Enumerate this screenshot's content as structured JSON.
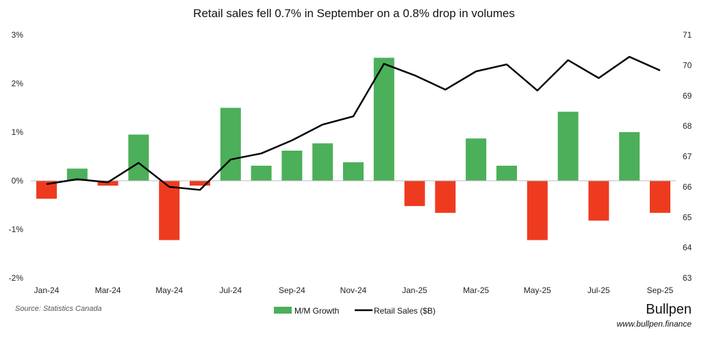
{
  "chart_data": {
    "type": "bar+line",
    "title": "Retail sales fell 0.7% in September on a 0.8% drop in volumes",
    "categories": [
      "Jan-24",
      "Feb-24",
      "Mar-24",
      "Apr-24",
      "May-24",
      "Jun-24",
      "Jul-24",
      "Aug-24",
      "Sep-24",
      "Oct-24",
      "Nov-24",
      "Dec-24",
      "Jan-25",
      "Feb-25",
      "Mar-25",
      "Apr-25",
      "May-25",
      "Jun-25",
      "Jul-25",
      "Aug-25",
      "Sep-25"
    ],
    "x_tick_labels": [
      "Jan-24",
      "Mar-24",
      "May-24",
      "Jul-24",
      "Sep-24",
      "Nov-24",
      "Jan-25",
      "Mar-25",
      "May-25",
      "Jul-25",
      "Sep-25"
    ],
    "series": [
      {
        "name": "M/M Growth",
        "type": "bar",
        "axis": "left",
        "unit": "%",
        "values": [
          -0.37,
          0.25,
          -0.1,
          0.95,
          -1.22,
          -0.1,
          1.5,
          0.31,
          0.62,
          0.77,
          0.38,
          2.53,
          -0.52,
          -0.66,
          0.87,
          0.31,
          -1.22,
          1.42,
          -0.82,
          1.0,
          -0.66
        ],
        "color_positive": "#4caf5a",
        "color_negative": "#ee3b1f"
      },
      {
        "name": "Retail Sales ($B)",
        "type": "line",
        "axis": "right",
        "values": [
          66.09,
          66.25,
          66.15,
          66.79,
          66.0,
          65.9,
          66.9,
          67.1,
          67.53,
          68.05,
          68.32,
          70.05,
          69.67,
          69.2,
          69.8,
          70.03,
          69.17,
          70.17,
          69.58,
          70.28,
          69.83
        ],
        "color": "#000000"
      }
    ],
    "left_axis": {
      "ylim": [
        -2,
        3
      ],
      "ticks": [
        "-2%",
        "-1%",
        "0%",
        "1%",
        "2%",
        "3%"
      ]
    },
    "right_axis": {
      "ylim": [
        63,
        71
      ],
      "ticks": [
        "63",
        "64",
        "65",
        "66",
        "67",
        "68",
        "69",
        "70",
        "71"
      ]
    },
    "grid": false,
    "legend_placement": "bottom"
  },
  "footer": {
    "source": "Source: Statistics Canada",
    "brand": "Bullpen",
    "url": "www.bullpen.finance"
  }
}
